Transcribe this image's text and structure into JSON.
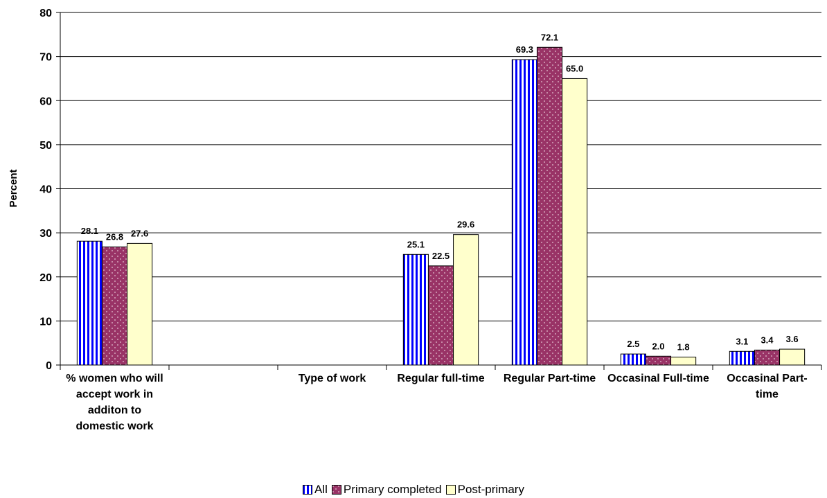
{
  "chart_data": {
    "type": "bar",
    "y_label": "Percent",
    "categories": [
      "% women who will accept work in additon to domestic work",
      null,
      "Type of work",
      "Regular full-time",
      "Regular Part-time",
      "Occasinal Full-time",
      "Occasinal Part-time"
    ],
    "series": [
      {
        "name": "All",
        "color": "#0000FF",
        "values": [
          28.1,
          null,
          null,
          25.1,
          69.3,
          2.5,
          3.1
        ],
        "value_labels": [
          "28.1",
          null,
          null,
          "25.1",
          "69.3",
          "2.5",
          "3.1"
        ]
      },
      {
        "name": "Primary completed",
        "color": "#993366",
        "values": [
          26.8,
          null,
          null,
          22.5,
          72.1,
          2.0,
          3.4
        ],
        "value_labels": [
          "26.8",
          null,
          null,
          "22.5",
          "72.1",
          "2.0",
          "3.4"
        ]
      },
      {
        "name": "Post-primary",
        "color": "#FFFFCC",
        "values": [
          27.6,
          null,
          null,
          29.6,
          65.0,
          1.8,
          3.6
        ],
        "value_labels": [
          "27.6",
          null,
          null,
          "29.6",
          "65.0",
          "1.8",
          "3.6"
        ]
      }
    ],
    "ylim": [
      0,
      80
    ],
    "yticks": [
      0,
      10,
      20,
      30,
      40,
      50,
      60,
      70,
      80
    ],
    "grid": true,
    "legend": "bottom"
  }
}
